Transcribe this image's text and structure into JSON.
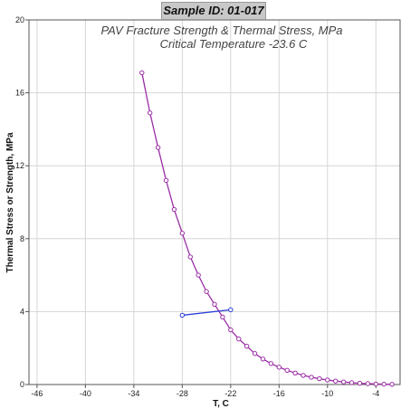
{
  "header": {
    "sample_id": "Sample ID: 01-017"
  },
  "chart_data": {
    "type": "line",
    "subtitle_lines": [
      "PAV Fracture Strength & Thermal Stress, MPa",
      "Critical Temperature -23.6 C"
    ],
    "xlabel": "T, C",
    "ylabel": "Thermal Stress or Strength, MPa",
    "xlim": [
      -47,
      -1
    ],
    "ylim": [
      0,
      20
    ],
    "x_ticks": [
      -46,
      -40,
      -34,
      -28,
      -22,
      -16,
      -10,
      -4
    ],
    "y_ticks": [
      0,
      4,
      8,
      12,
      16,
      20
    ],
    "grid": true,
    "series": [
      {
        "color": "#9b2fa6",
        "marker": "circle",
        "points": [
          [
            -33.0,
            17.1
          ],
          [
            -32.0,
            14.9
          ],
          [
            -31.0,
            13.0
          ],
          [
            -30.0,
            11.2
          ],
          [
            -29.0,
            9.6
          ],
          [
            -28.0,
            8.3
          ],
          [
            -27.0,
            7.0
          ],
          [
            -26.0,
            6.0
          ],
          [
            -25.0,
            5.1
          ],
          [
            -24.0,
            4.4
          ],
          [
            -23.0,
            3.7
          ],
          [
            -22.0,
            3.0
          ],
          [
            -21.0,
            2.5
          ],
          [
            -20.0,
            2.1
          ],
          [
            -19.0,
            1.7
          ],
          [
            -18.0,
            1.4
          ],
          [
            -17.0,
            1.15
          ],
          [
            -16.0,
            0.95
          ],
          [
            -15.0,
            0.78
          ],
          [
            -14.0,
            0.63
          ],
          [
            -13.0,
            0.5
          ],
          [
            -12.0,
            0.4
          ],
          [
            -11.0,
            0.32
          ],
          [
            -10.0,
            0.25
          ],
          [
            -9.0,
            0.19
          ],
          [
            -8.0,
            0.14
          ],
          [
            -7.0,
            0.1
          ],
          [
            -6.0,
            0.07
          ],
          [
            -5.0,
            0.05
          ],
          [
            -4.0,
            0.03
          ],
          [
            -3.0,
            0.02
          ],
          [
            -2.0,
            0.01
          ]
        ]
      },
      {
        "color": "#2a3fd6",
        "marker": "circle",
        "points": [
          [
            -28.0,
            3.8
          ],
          [
            -22.0,
            4.1
          ]
        ]
      }
    ]
  }
}
